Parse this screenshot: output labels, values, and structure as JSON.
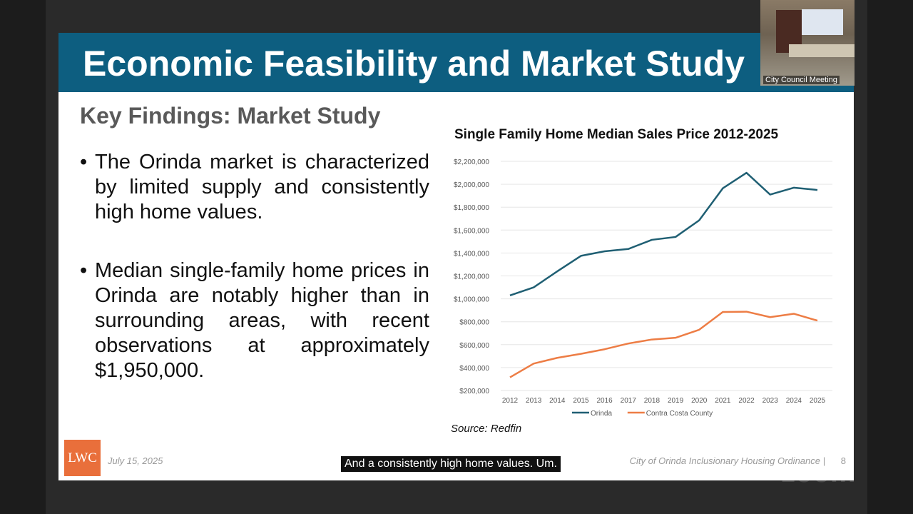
{
  "slide": {
    "title": "Economic Feasibility and Market Study",
    "subtitle": "Key Findings: Market Study",
    "bullets": [
      "The Orinda market is characterized by limited supply and consistently high home values.",
      "Median single-family home prices in Orinda are notably higher than in surrounding areas, with recent observations at approximately $1,950,000."
    ],
    "source": "Source: Redfin",
    "logo": "LWC",
    "date": "July 15, 2025",
    "footer": "City of Orinda Inclusionary Housing Ordinance",
    "page_number": "8"
  },
  "caption": "And a consistently high home values. Um.",
  "video": {
    "label": "City Council Meeting"
  },
  "watermark": "zoom",
  "chart_data": {
    "type": "line",
    "title": "Single Family Home Median Sales Price 2012-2025",
    "categories": [
      "2012",
      "2013",
      "2014",
      "2015",
      "2016",
      "2017",
      "2018",
      "2019",
      "2020",
      "2021",
      "2022",
      "2023",
      "2024",
      "2025"
    ],
    "series": [
      {
        "name": "Orinda",
        "color": "#1f5f73",
        "values": [
          1030000,
          1100000,
          1240000,
          1375000,
          1415000,
          1435000,
          1515000,
          1540000,
          1685000,
          1965000,
          2100000,
          1910000,
          1970000,
          1950000
        ]
      },
      {
        "name": "Contra Costa County",
        "color": "#ed7d45",
        "values": [
          315000,
          435000,
          485000,
          520000,
          560000,
          610000,
          645000,
          660000,
          730000,
          885000,
          888000,
          840000,
          870000,
          810000
        ]
      }
    ],
    "ylim": [
      200000,
      2200000
    ],
    "yticks": [
      "$200,000",
      "$400,000",
      "$600,000",
      "$800,000",
      "$1,000,000",
      "$1,200,000",
      "$1,400,000",
      "$1,600,000",
      "$1,800,000",
      "$2,000,000",
      "$2,200,000"
    ],
    "grid": true,
    "legend": "bottom"
  }
}
